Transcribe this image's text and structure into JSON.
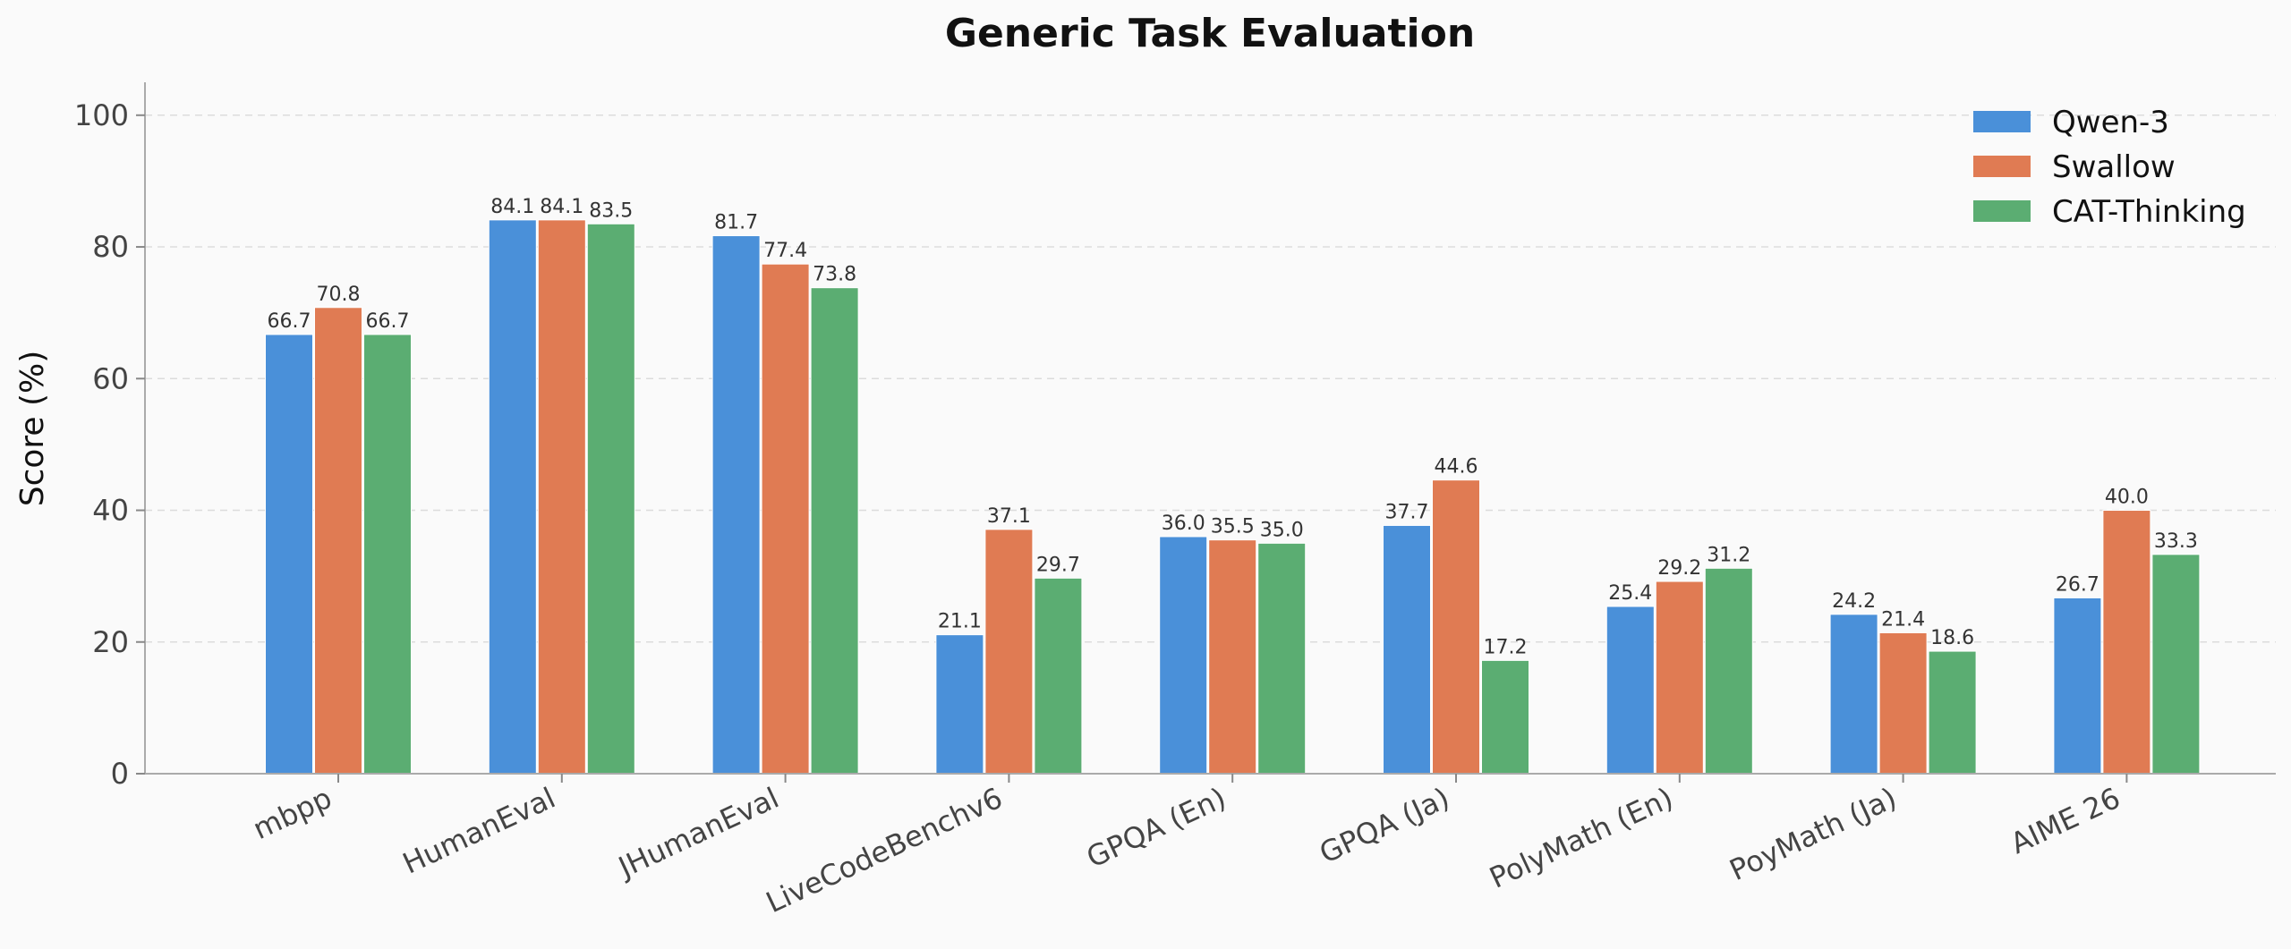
{
  "chart_data": {
    "type": "bar",
    "title": "Generic Task Evaluation",
    "xlabel": "",
    "ylabel": "Score (%)",
    "ylim": [
      0,
      105
    ],
    "yticks": [
      0,
      20,
      40,
      60,
      80,
      100
    ],
    "grid": true,
    "legend_position": "top-right",
    "categories": [
      "mbpp",
      "HumanEval",
      "JHumanEval",
      "LiveCodeBenchv6",
      "GPQA (En)",
      "GPQA (Ja)",
      "PolyMath (En)",
      "PoyMath (Ja)",
      "AIME 26"
    ],
    "series": [
      {
        "name": "Qwen-3",
        "color": "#4a90d9",
        "values": [
          66.7,
          84.1,
          81.7,
          21.1,
          36.0,
          37.7,
          25.4,
          24.2,
          26.7
        ]
      },
      {
        "name": "Swallow",
        "color": "#e07b53",
        "values": [
          70.8,
          84.1,
          77.4,
          37.1,
          35.5,
          44.6,
          29.2,
          21.4,
          40.0
        ]
      },
      {
        "name": "CAT-Thinking",
        "color": "#5bad72",
        "values": [
          66.7,
          83.5,
          73.8,
          29.7,
          35.0,
          17.2,
          31.2,
          18.6,
          33.3
        ]
      }
    ]
  }
}
